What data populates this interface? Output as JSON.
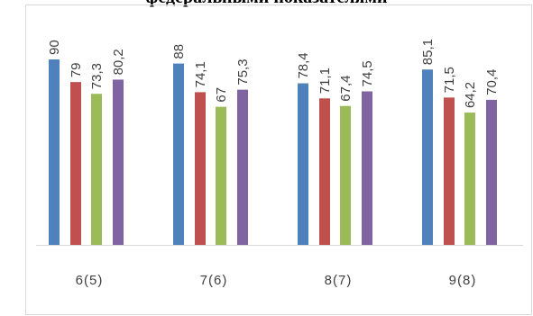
{
  "chart_data": {
    "type": "bar",
    "title": "федеральными показателями",
    "categories": [
      "6(5)",
      "7(6)",
      "8(7)",
      "9(8)"
    ],
    "series": [
      {
        "values": [
          90,
          88,
          78.4,
          85.1
        ],
        "color": "#4f81bd"
      },
      {
        "values": [
          79,
          74.1,
          71.1,
          71.5
        ],
        "color": "#c0504d"
      },
      {
        "values": [
          73.3,
          67,
          67.4,
          64.2
        ],
        "color": "#9bbb59"
      },
      {
        "values": [
          80.2,
          75.3,
          74.5,
          70.4
        ],
        "color": "#8064a2"
      }
    ],
    "data_labels": [
      [
        "90",
        "88",
        "78,4",
        "85,1"
      ],
      [
        "79",
        "74,1",
        "71,1",
        "71,5"
      ],
      [
        "73,3",
        "67",
        "67,4",
        "64,2"
      ],
      [
        "80,2",
        "75,3",
        "74,5",
        "70,4"
      ]
    ],
    "ylim": [
      0,
      100
    ],
    "grid": false,
    "legend": "none"
  }
}
